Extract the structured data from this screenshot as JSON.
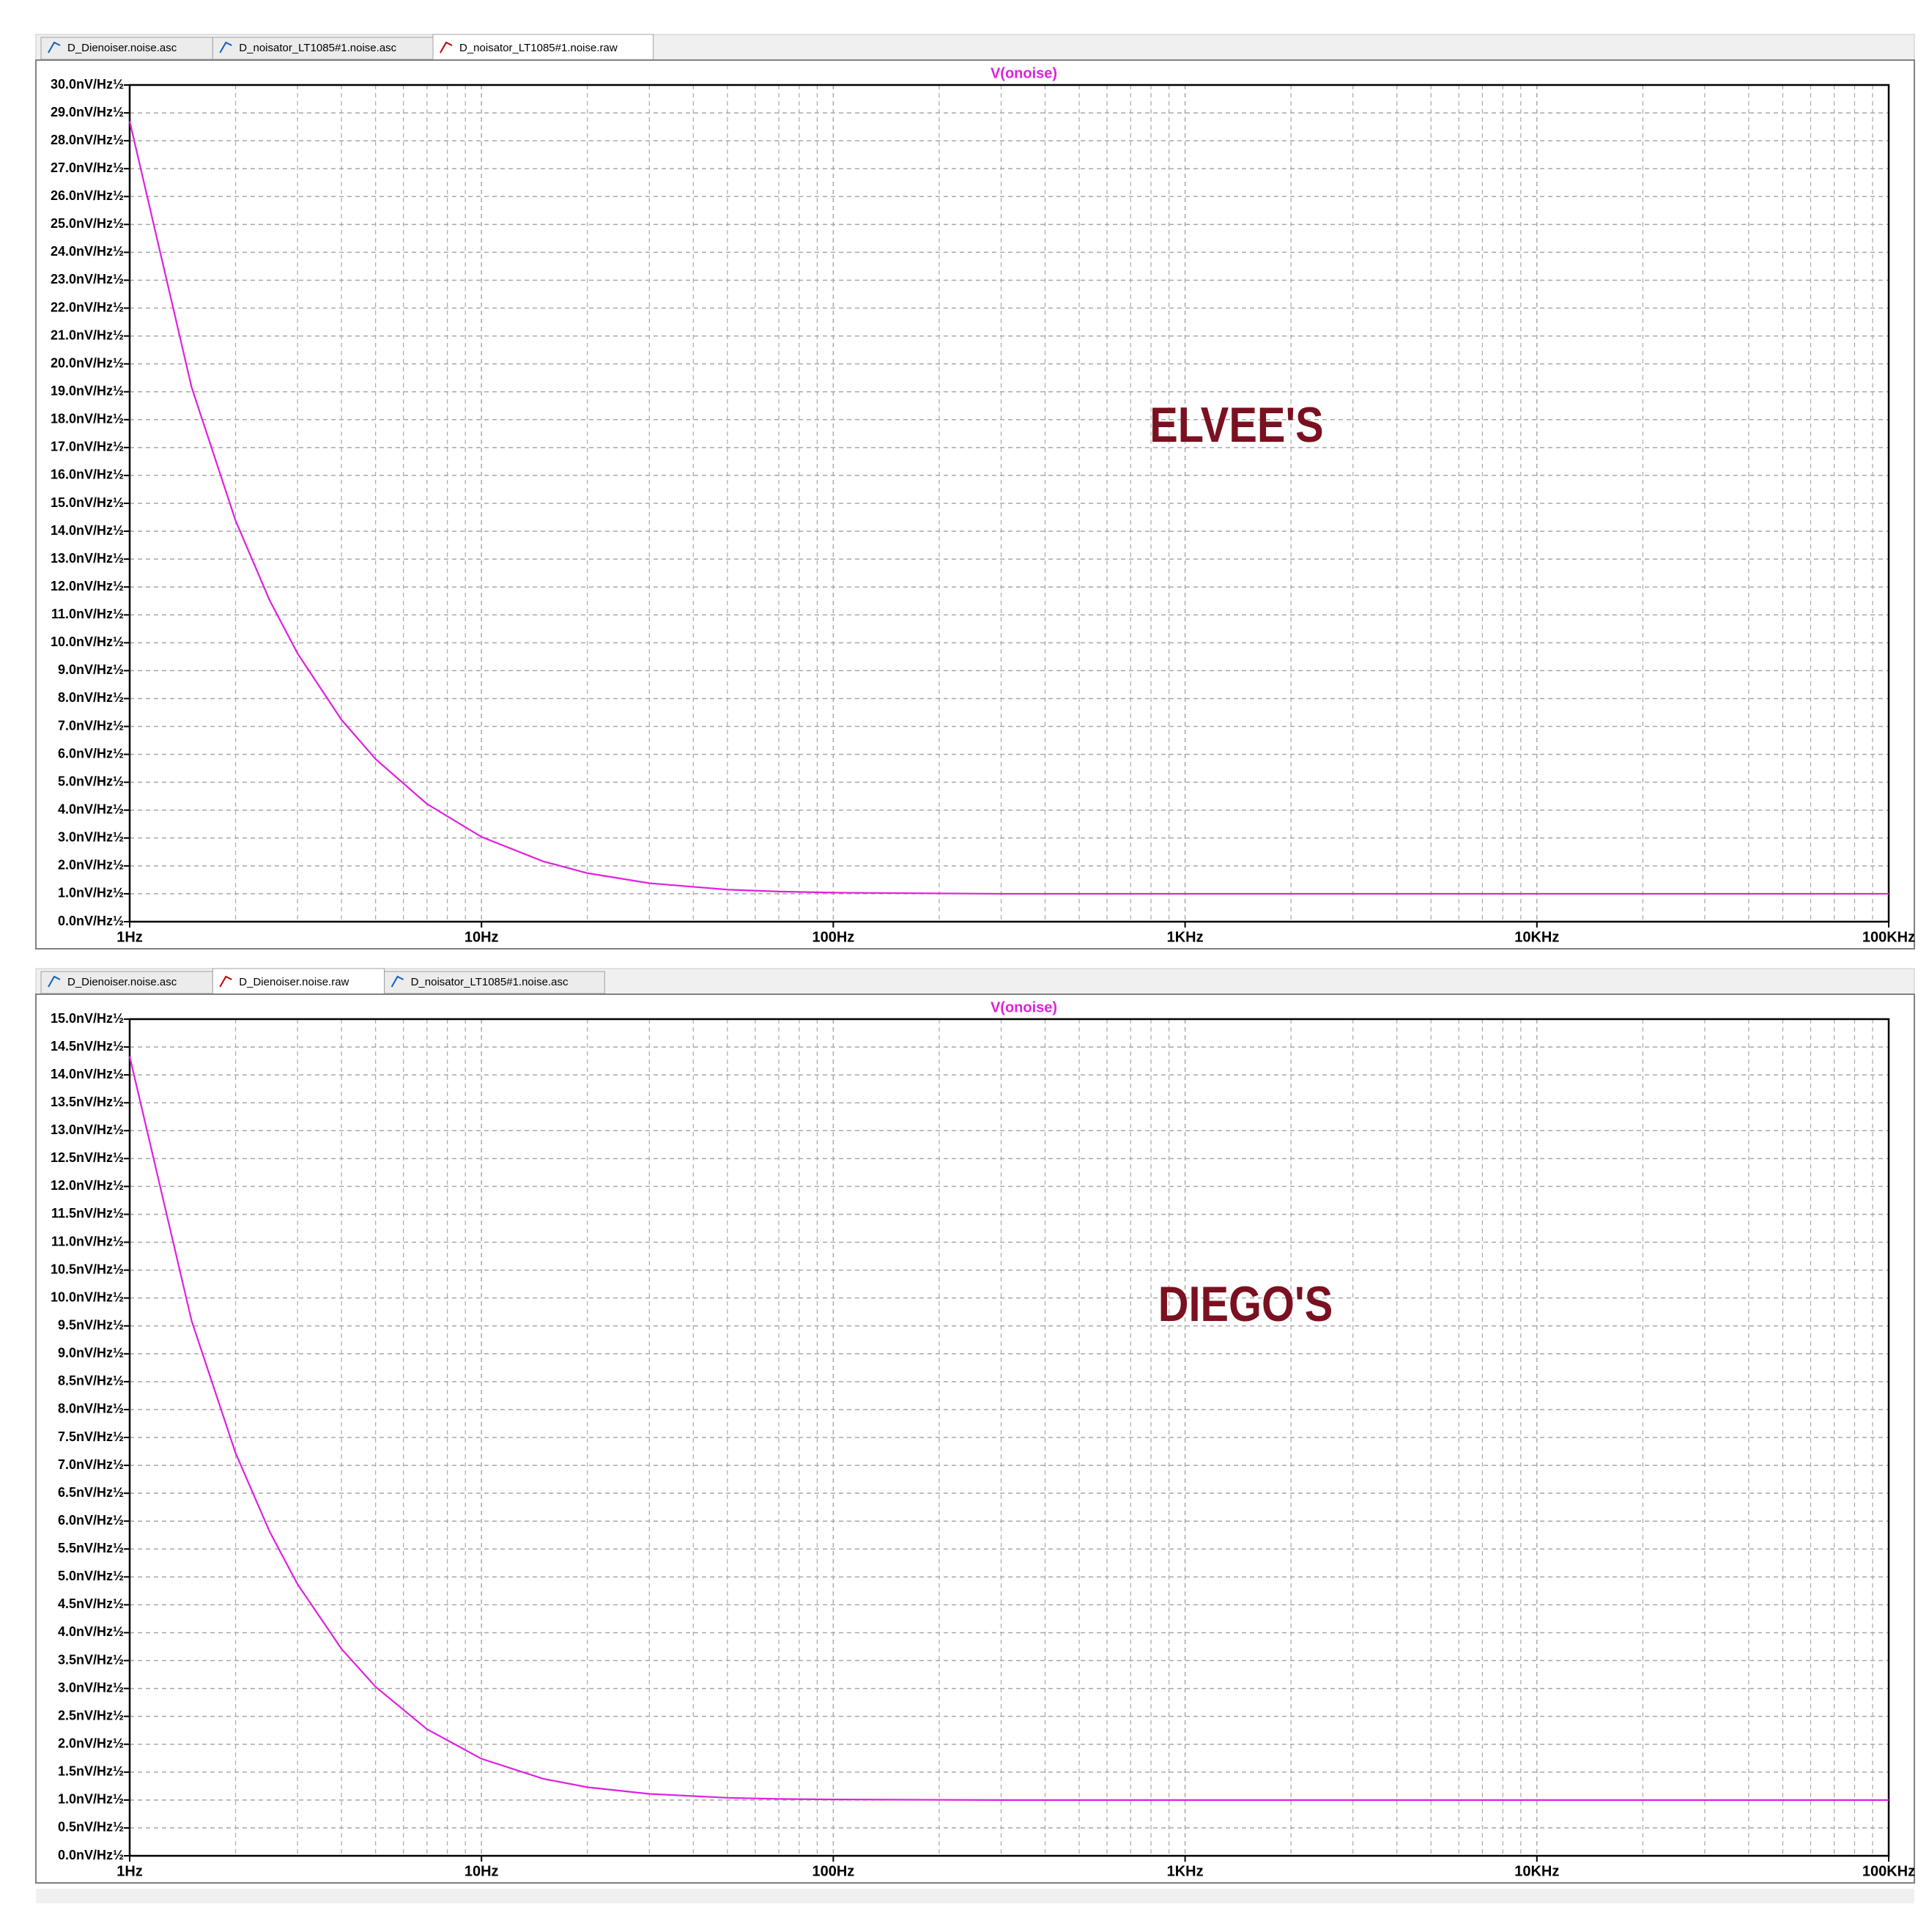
{
  "chart_data": [
    {
      "type": "line",
      "title": "V(onoise)",
      "annotation": "ELVEE'S",
      "tabs": [
        "D_Dienoiser.noise.asc",
        "D_noisator_LT1085#1.noise.asc",
        "D_noisator_LT1085#1.noise.raw"
      ],
      "active_tab": 2,
      "x": [
        1,
        1.5,
        2,
        2.5,
        3,
        4,
        5,
        7,
        10,
        15,
        20,
        30,
        50,
        70,
        100,
        300,
        1000,
        10000,
        100000
      ],
      "series": [
        {
          "name": "V(onoise)",
          "color": "#e020e0",
          "values": [
            28.7,
            19.16,
            14.38,
            11.52,
            9.62,
            7.24,
            5.83,
            4.22,
            3.04,
            2.16,
            1.74,
            1.38,
            1.15,
            1.08,
            1.04,
            1.0,
            1.0,
            1.0,
            1.0
          ]
        }
      ],
      "xlog": true,
      "xlim": [
        1,
        100000
      ],
      "xticks": [
        {
          "value": 1,
          "label": "1Hz"
        },
        {
          "value": 10,
          "label": "10Hz"
        },
        {
          "value": 100,
          "label": "100Hz"
        },
        {
          "value": 1000,
          "label": "1KHz"
        },
        {
          "value": 10000,
          "label": "10KHz"
        },
        {
          "value": 100000,
          "label": "100KHz"
        }
      ],
      "ylim": [
        0,
        30
      ],
      "yticks": [
        {
          "value": 0,
          "label": "0.0nV/Hz½"
        },
        {
          "value": 1,
          "label": "1.0nV/Hz½"
        },
        {
          "value": 2,
          "label": "2.0nV/Hz½"
        },
        {
          "value": 3,
          "label": "3.0nV/Hz½"
        },
        {
          "value": 4,
          "label": "4.0nV/Hz½"
        },
        {
          "value": 5,
          "label": "5.0nV/Hz½"
        },
        {
          "value": 6,
          "label": "6.0nV/Hz½"
        },
        {
          "value": 7,
          "label": "7.0nV/Hz½"
        },
        {
          "value": 8,
          "label": "8.0nV/Hz½"
        },
        {
          "value": 9,
          "label": "9.0nV/Hz½"
        },
        {
          "value": 10,
          "label": "10.0nV/Hz½"
        },
        {
          "value": 11,
          "label": "11.0nV/Hz½"
        },
        {
          "value": 12,
          "label": "12.0nV/Hz½"
        },
        {
          "value": 13,
          "label": "13.0nV/Hz½"
        },
        {
          "value": 14,
          "label": "14.0nV/Hz½"
        },
        {
          "value": 15,
          "label": "15.0nV/Hz½"
        },
        {
          "value": 16,
          "label": "16.0nV/Hz½"
        },
        {
          "value": 17,
          "label": "17.0nV/Hz½"
        },
        {
          "value": 18,
          "label": "18.0nV/Hz½"
        },
        {
          "value": 19,
          "label": "19.0nV/Hz½"
        },
        {
          "value": 20,
          "label": "20.0nV/Hz½"
        },
        {
          "value": 21,
          "label": "21.0nV/Hz½"
        },
        {
          "value": 22,
          "label": "22.0nV/Hz½"
        },
        {
          "value": 23,
          "label": "23.0nV/Hz½"
        },
        {
          "value": 24,
          "label": "24.0nV/Hz½"
        },
        {
          "value": 25,
          "label": "25.0nV/Hz½"
        },
        {
          "value": 26,
          "label": "26.0nV/Hz½"
        },
        {
          "value": 27,
          "label": "27.0nV/Hz½"
        },
        {
          "value": 28,
          "label": "28.0nV/Hz½"
        },
        {
          "value": 29,
          "label": "29.0nV/Hz½"
        },
        {
          "value": 30,
          "label": "30.0nV/Hz½"
        }
      ],
      "grid": true
    },
    {
      "type": "line",
      "title": "V(onoise)",
      "annotation": "DIEGO'S",
      "tabs": [
        "D_Dienoiser.noise.asc",
        "D_Dienoiser.noise.raw",
        "D_noisator_LT1085#1.noise.asc"
      ],
      "active_tab": 1,
      "x": [
        1,
        1.5,
        2,
        2.5,
        3,
        4,
        5,
        7,
        10,
        15,
        20,
        30,
        50,
        70,
        100,
        300,
        1000,
        10000,
        100000
      ],
      "series": [
        {
          "name": "V(onoise)",
          "color": "#e020e0",
          "values": [
            14.33,
            9.59,
            7.22,
            5.81,
            4.87,
            3.71,
            3.03,
            2.27,
            1.74,
            1.38,
            1.23,
            1.11,
            1.04,
            1.02,
            1.01,
            1.0,
            1.0,
            1.0,
            1.0
          ]
        }
      ],
      "xlog": true,
      "xlim": [
        1,
        100000
      ],
      "xticks": [
        {
          "value": 1,
          "label": "1Hz"
        },
        {
          "value": 10,
          "label": "10Hz"
        },
        {
          "value": 100,
          "label": "100Hz"
        },
        {
          "value": 1000,
          "label": "1KHz"
        },
        {
          "value": 10000,
          "label": "10KHz"
        },
        {
          "value": 100000,
          "label": "100KHz"
        }
      ],
      "ylim": [
        0,
        15
      ],
      "yticks": [
        {
          "value": 0,
          "label": "0.0nV/Hz½"
        },
        {
          "value": 0.5,
          "label": "0.5nV/Hz½"
        },
        {
          "value": 1,
          "label": "1.0nV/Hz½"
        },
        {
          "value": 1.5,
          "label": "1.5nV/Hz½"
        },
        {
          "value": 2,
          "label": "2.0nV/Hz½"
        },
        {
          "value": 2.5,
          "label": "2.5nV/Hz½"
        },
        {
          "value": 3,
          "label": "3.0nV/Hz½"
        },
        {
          "value": 3.5,
          "label": "3.5nV/Hz½"
        },
        {
          "value": 4,
          "label": "4.0nV/Hz½"
        },
        {
          "value": 4.5,
          "label": "4.5nV/Hz½"
        },
        {
          "value": 5,
          "label": "5.0nV/Hz½"
        },
        {
          "value": 5.5,
          "label": "5.5nV/Hz½"
        },
        {
          "value": 6,
          "label": "6.0nV/Hz½"
        },
        {
          "value": 6.5,
          "label": "6.5nV/Hz½"
        },
        {
          "value": 7,
          "label": "7.0nV/Hz½"
        },
        {
          "value": 7.5,
          "label": "7.5nV/Hz½"
        },
        {
          "value": 8,
          "label": "8.0nV/Hz½"
        },
        {
          "value": 8.5,
          "label": "8.5nV/Hz½"
        },
        {
          "value": 9,
          "label": "9.0nV/Hz½"
        },
        {
          "value": 9.5,
          "label": "9.5nV/Hz½"
        },
        {
          "value": 10,
          "label": "10.0nV/Hz½"
        },
        {
          "value": 10.5,
          "label": "10.5nV/Hz½"
        },
        {
          "value": 11,
          "label": "11.0nV/Hz½"
        },
        {
          "value": 11.5,
          "label": "11.5nV/Hz½"
        },
        {
          "value": 12,
          "label": "12.0nV/Hz½"
        },
        {
          "value": 12.5,
          "label": "12.5nV/Hz½"
        },
        {
          "value": 13,
          "label": "13.0nV/Hz½"
        },
        {
          "value": 13.5,
          "label": "13.5nV/Hz½"
        },
        {
          "value": 14,
          "label": "14.0nV/Hz½"
        },
        {
          "value": 14.5,
          "label": "14.5nV/Hz½"
        },
        {
          "value": 15,
          "label": "15.0nV/Hz½"
        }
      ],
      "grid": true
    }
  ]
}
